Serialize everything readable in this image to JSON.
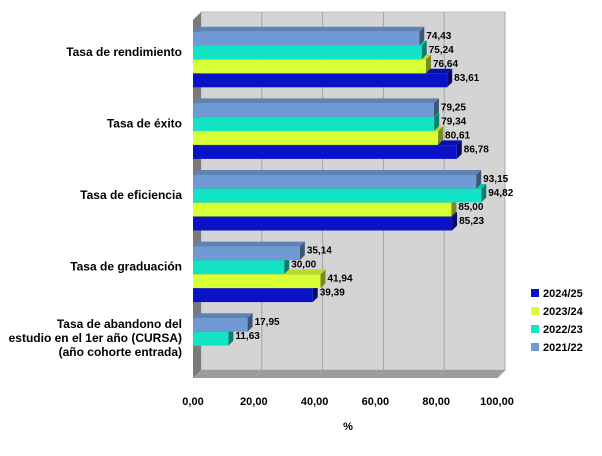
{
  "chart_data": {
    "type": "bar",
    "orientation": "horizontal",
    "xlabel": "%",
    "xlim": [
      0,
      100
    ],
    "xticks": [
      "0,00",
      "20,00",
      "40,00",
      "60,00",
      "80,00",
      "100,00"
    ],
    "grid": true,
    "legend_position": "right",
    "categories": [
      "Tasa de rendimiento",
      "Tasa de éxito",
      "Tasa de eficiencia",
      "Tasa de graduación",
      "Tasa de abandono del estudio en el 1er año (CURSA) (año cohorte entrada)"
    ],
    "category_lines": [
      [
        "Tasa de rendimiento"
      ],
      [
        "Tasa de éxito"
      ],
      [
        "Tasa de eficiencia"
      ],
      [
        "Tasa de graduación"
      ],
      [
        "Tasa de abandono del",
        "estudio en el 1er año (CURSA)",
        "(año cohorte entrada)"
      ]
    ],
    "series": [
      {
        "name": "2021/22",
        "color": "#6f9ad4",
        "values": [
          74.43,
          79.25,
          93.15,
          35.14,
          17.95
        ],
        "labels": [
          "74,43",
          "79,25",
          "93,15",
          "35,14",
          "17,95"
        ]
      },
      {
        "name": "2022/23",
        "color": "#12e4c6",
        "values": [
          75.24,
          79.34,
          94.82,
          30.0,
          11.63
        ],
        "labels": [
          "75,24",
          "79,34",
          "94,82",
          "30,00",
          "11,63"
        ]
      },
      {
        "name": "2023/24",
        "color": "#d8ff36",
        "values": [
          76.64,
          80.61,
          85.0,
          41.94,
          null
        ],
        "labels": [
          "76,64",
          "80,61",
          "85,00",
          "41,94",
          ""
        ]
      },
      {
        "name": "2024/25",
        "color": "#0a12c8",
        "values": [
          83.61,
          86.78,
          85.23,
          39.39,
          null
        ],
        "labels": [
          "83,61",
          "86,78",
          "85,23",
          "39,39",
          ""
        ]
      }
    ],
    "legend_order": [
      "2024/25",
      "2023/24",
      "2022/23",
      "2021/22"
    ]
  }
}
